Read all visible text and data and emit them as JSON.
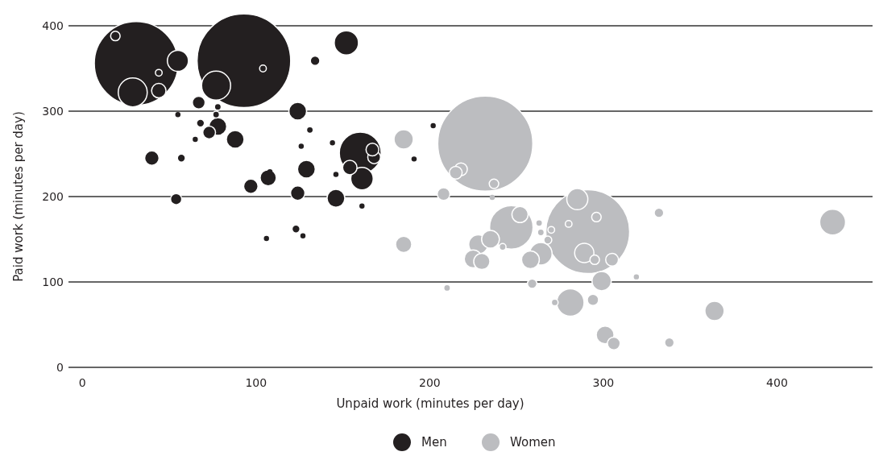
{
  "chart_data": {
    "type": "bubble",
    "xlabel": "Unpaid work (minutes per day)",
    "ylabel": "Paid work (minutes per day)",
    "xlim": [
      -8,
      455
    ],
    "ylim": [
      0,
      400
    ],
    "xticks": [
      0,
      100,
      200,
      300,
      400
    ],
    "yticks": [
      0,
      100,
      200,
      300,
      400
    ],
    "grid": "y",
    "legend": "bottom",
    "series": [
      {
        "name": "Men",
        "color": "#231f20",
        "x": [
          93,
          31,
          160,
          29,
          77,
          152,
          55,
          161,
          44,
          129,
          124,
          146,
          88,
          78,
          107,
          19,
          97,
          124,
          67,
          73,
          40,
          154,
          168,
          167,
          57,
          54,
          134,
          68,
          123,
          104,
          44,
          78,
          77,
          65,
          131,
          55,
          126,
          144,
          146,
          108,
          202,
          106,
          127,
          191,
          161
        ],
        "values": [
          359,
          356,
          251,
          322,
          330,
          380,
          359,
          221,
          324,
          232,
          300,
          198,
          267,
          282,
          222,
          388,
          212,
          204,
          310,
          275,
          245,
          234,
          246,
          255,
          245,
          197,
          359,
          286,
          162,
          350,
          345,
          305,
          296,
          267,
          278,
          296,
          259,
          263,
          226,
          229,
          283,
          151,
          154,
          244,
          189
        ],
        "sizes": [
          0.97,
          0.777,
          0.194,
          0.093,
          0.093,
          0.065,
          0.049,
          0.056,
          0.023,
          0.035,
          0.035,
          0.035,
          0.035,
          0.035,
          0.029,
          0.01,
          0.023,
          0.023,
          0.018,
          0.018,
          0.023,
          0.023,
          0.018,
          0.018,
          0.007,
          0.014,
          0.01,
          0.007,
          0.007,
          0.005,
          0.005,
          0.005,
          0.005,
          0.003,
          0.005,
          0.003,
          0.003,
          0.003,
          0.003,
          0.003,
          0.003,
          0.003,
          0.003,
          0.003,
          0.003
        ]
      },
      {
        "name": "Women",
        "color": "#bcbdc0",
        "x": [
          232,
          291,
          247,
          432,
          364,
          281,
          185,
          285,
          264,
          299,
          185,
          289,
          228,
          235,
          258,
          225,
          230,
          301,
          252,
          306,
          332,
          218,
          215,
          305,
          237,
          208,
          296,
          295,
          294,
          338,
          259,
          268,
          210,
          272,
          319,
          263,
          264,
          270,
          280,
          242,
          236
        ],
        "values": [
          262,
          159,
          164,
          170,
          66,
          76,
          267,
          197,
          133,
          101,
          144,
          134,
          144,
          150,
          126,
          127,
          124,
          38,
          179,
          28,
          181,
          232,
          228,
          126,
          215,
          203,
          176,
          126,
          79,
          29,
          98,
          149,
          93,
          76,
          106,
          169,
          158,
          161,
          168,
          141,
          199
        ],
        "sizes": [
          1,
          0.777,
          0.209,
          0.074,
          0.041,
          0.083,
          0.041,
          0.049,
          0.056,
          0.041,
          0.029,
          0.041,
          0.041,
          0.035,
          0.035,
          0.035,
          0.029,
          0.035,
          0.029,
          0.018,
          0.01,
          0.018,
          0.018,
          0.018,
          0.01,
          0.018,
          0.01,
          0.01,
          0.014,
          0.01,
          0.01,
          0.007,
          0.005,
          0.005,
          0.003,
          0.005,
          0.005,
          0.005,
          0.005,
          0.005,
          0.003
        ]
      }
    ]
  }
}
